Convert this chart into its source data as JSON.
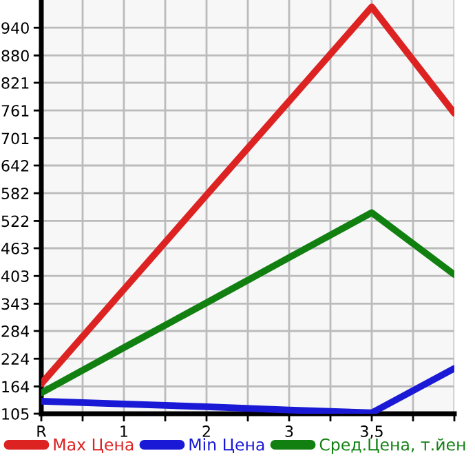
{
  "chart_data": {
    "type": "line",
    "categories": [
      "R",
      "1",
      "2",
      "3",
      "3,5",
      null
    ],
    "series": [
      {
        "name": "Max Цена",
        "color": "#dd2222",
        "values": [
          170,
          374,
          578,
          781,
          985,
          755
        ]
      },
      {
        "name": "Min Цена",
        "color": "#1a1ad6",
        "values": [
          132,
          126,
          120,
          113,
          107,
          203
        ]
      },
      {
        "name": "Сред.Цена, т.йен",
        "color": "#118011",
        "values": [
          150,
          248,
          345,
          443,
          540,
          406
        ]
      }
    ],
    "ylim": [
      105,
      1000
    ],
    "yticks": [
      105,
      164,
      224,
      284,
      343,
      403,
      463,
      522,
      582,
      642,
      701,
      761,
      821,
      880,
      940
    ],
    "grid": true,
    "legend": "bottom",
    "marker": "none",
    "line_style": "solid"
  }
}
